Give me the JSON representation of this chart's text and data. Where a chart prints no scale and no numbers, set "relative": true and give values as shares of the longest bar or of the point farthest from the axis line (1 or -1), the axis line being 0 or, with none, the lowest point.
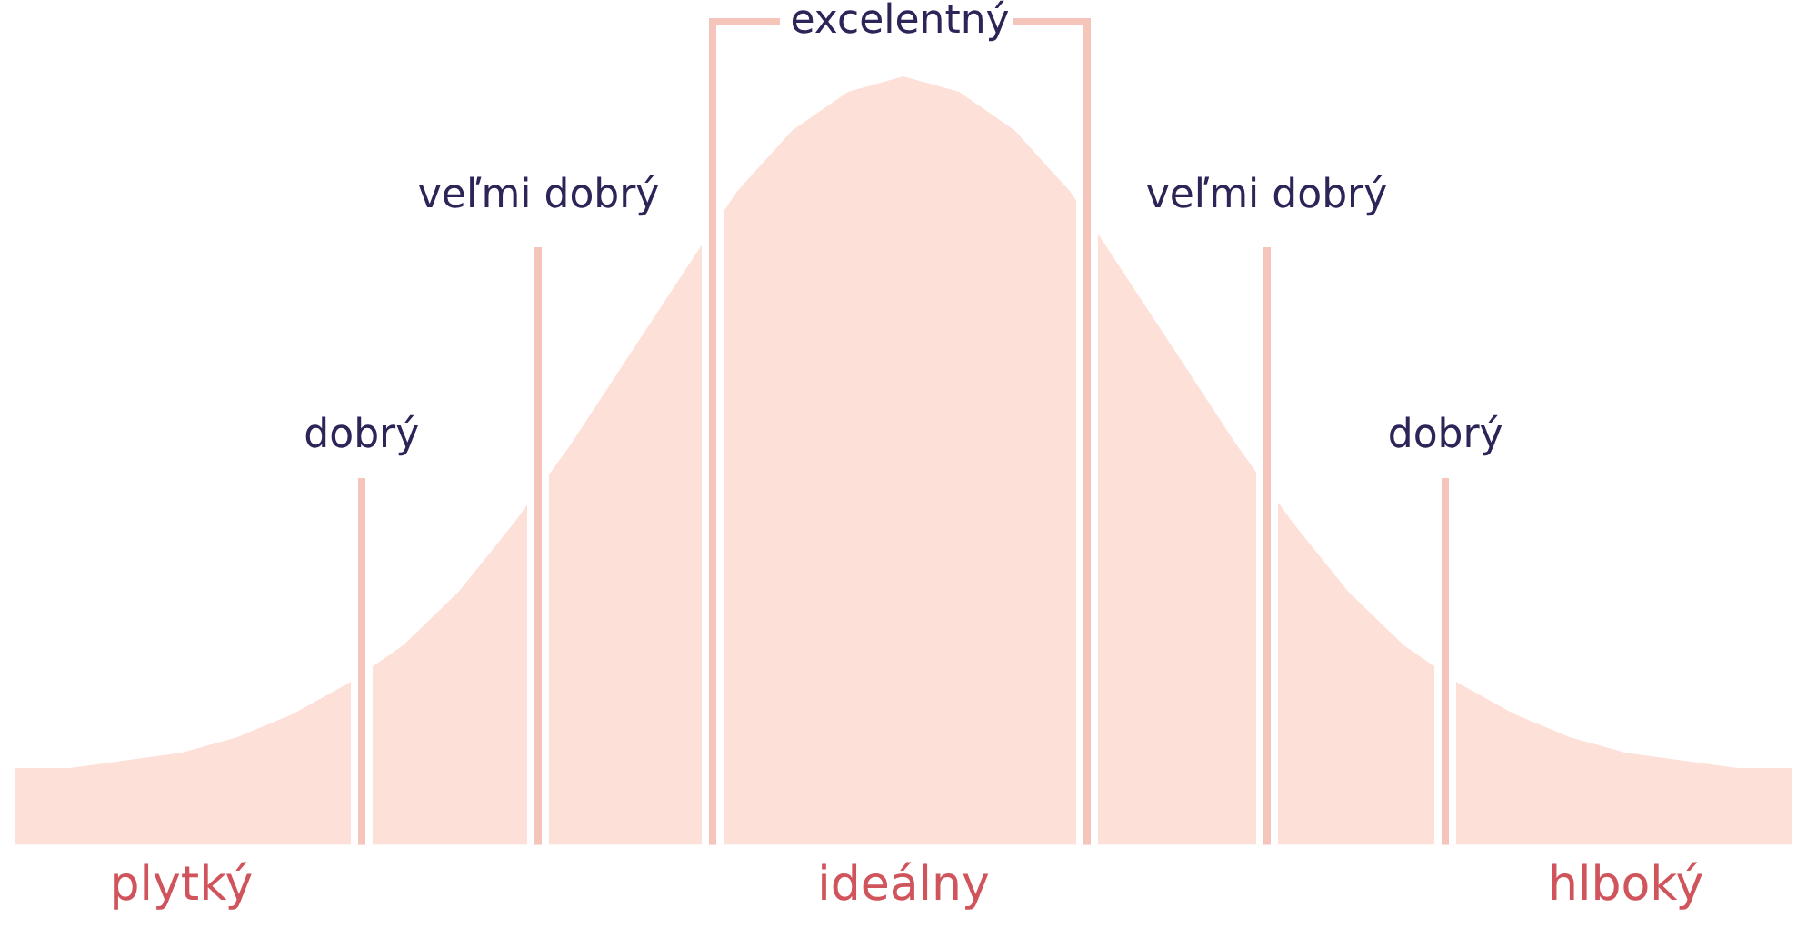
{
  "chart_data": {
    "type": "area",
    "relative": true,
    "tick_labels": "x",
    "legend": false,
    "categories": [
      null,
      null,
      null,
      "plytký",
      null,
      null,
      null,
      null,
      null,
      null,
      null,
      null,
      null,
      null,
      null,
      null,
      "ideálny",
      null,
      null,
      null,
      null,
      null,
      null,
      null,
      null,
      null,
      null,
      null,
      null,
      "hlboký",
      null,
      null,
      null
    ],
    "series": [
      {
        "color": "#fde0d8",
        "values": [
          0.1,
          0.1,
          0.11,
          0.12,
          0.14,
          0.17,
          0.21,
          0.26,
          0.33,
          0.42,
          0.52,
          0.63,
          0.74,
          0.85,
          0.93,
          0.98,
          1,
          0.98,
          0.93,
          0.85,
          0.74,
          0.63,
          0.52,
          0.42,
          0.33,
          0.26,
          0.21,
          0.17,
          0.14,
          0.12,
          0.11,
          0.1,
          0.1
        ]
      }
    ],
    "annotations": [
      "dobrý",
      "veľmi dobrý",
      "excelentný",
      "veľmi dobrý",
      "dobrý"
    ]
  }
}
